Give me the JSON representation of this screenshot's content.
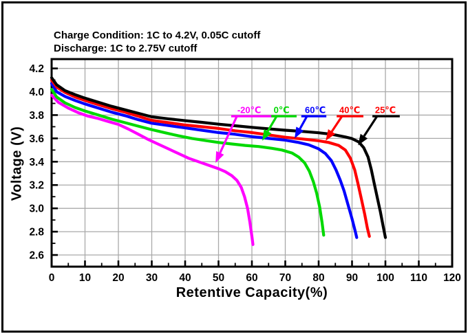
{
  "header": {
    "line1": "Charge Condition: 1C to 4.2V, 0.05C cutoff",
    "line2": "Discharge: 1C to 2.75V cutoff"
  },
  "chart_data": {
    "type": "line",
    "title": "",
    "xlabel": "Retentive Capacity(%)",
    "ylabel": "Voltage (V)",
    "xlim": [
      0,
      120
    ],
    "ylim": [
      2.5,
      4.28
    ],
    "x_major_ticks": [
      0,
      10,
      20,
      30,
      40,
      50,
      60,
      70,
      80,
      90,
      100,
      110,
      120
    ],
    "x_minor_ticks": [
      5,
      15,
      25,
      35,
      45,
      55,
      65,
      75,
      85,
      95,
      105,
      115
    ],
    "y_major_ticks": [
      2.6,
      2.8,
      3.0,
      3.2,
      3.4,
      3.6,
      3.8,
      4.0,
      4.2
    ],
    "y_minor_ticks": [
      2.7,
      2.9,
      3.1,
      3.3,
      3.5,
      3.7,
      3.9,
      4.1
    ],
    "grid": {
      "show": true,
      "color": "#a9a9a9",
      "x_step": 10,
      "y_step": 0.2
    },
    "legend_position": "inline-arrow-labels",
    "series": [
      {
        "name": "-20℃",
        "color": "#ff00ff",
        "points": [
          [
            0,
            3.97
          ],
          [
            2,
            3.91
          ],
          [
            5,
            3.86
          ],
          [
            8,
            3.82
          ],
          [
            11,
            3.79
          ],
          [
            14,
            3.77
          ],
          [
            17,
            3.745
          ],
          [
            20,
            3.72
          ],
          [
            23,
            3.68
          ],
          [
            26,
            3.635
          ],
          [
            29,
            3.59
          ],
          [
            32,
            3.55
          ],
          [
            35,
            3.51
          ],
          [
            38,
            3.47
          ],
          [
            41,
            3.43
          ],
          [
            44,
            3.4
          ],
          [
            47,
            3.37
          ],
          [
            50,
            3.34
          ],
          [
            52,
            3.315
          ],
          [
            54,
            3.28
          ],
          [
            55.5,
            3.24
          ],
          [
            56.8,
            3.18
          ],
          [
            57.8,
            3.1
          ],
          [
            58.7,
            3.0
          ],
          [
            59.4,
            2.88
          ],
          [
            60,
            2.76
          ],
          [
            60.3,
            2.69
          ]
        ]
      },
      {
        "name": "0℃",
        "color": "#00d900",
        "points": [
          [
            0,
            4.02
          ],
          [
            1.5,
            3.955
          ],
          [
            4,
            3.905
          ],
          [
            7,
            3.865
          ],
          [
            10,
            3.835
          ],
          [
            14,
            3.8
          ],
          [
            18,
            3.765
          ],
          [
            22,
            3.735
          ],
          [
            26,
            3.705
          ],
          [
            30,
            3.675
          ],
          [
            34,
            3.648
          ],
          [
            38,
            3.622
          ],
          [
            42,
            3.6
          ],
          [
            46,
            3.582
          ],
          [
            50,
            3.565
          ],
          [
            54,
            3.552
          ],
          [
            58,
            3.54
          ],
          [
            62,
            3.53
          ],
          [
            66,
            3.515
          ],
          [
            69,
            3.5
          ],
          [
            72,
            3.475
          ],
          [
            74,
            3.44
          ],
          [
            75.8,
            3.39
          ],
          [
            77.2,
            3.32
          ],
          [
            78.4,
            3.23
          ],
          [
            79.4,
            3.13
          ],
          [
            80.3,
            3.01
          ],
          [
            81,
            2.88
          ],
          [
            81.5,
            2.77
          ]
        ]
      },
      {
        "name": "60℃",
        "color": "#0000ff",
        "points": [
          [
            0,
            4.07
          ],
          [
            1.5,
            4.0
          ],
          [
            4,
            3.96
          ],
          [
            7,
            3.925
          ],
          [
            10,
            3.895
          ],
          [
            14,
            3.86
          ],
          [
            18,
            3.825
          ],
          [
            22,
            3.795
          ],
          [
            26,
            3.76
          ],
          [
            30,
            3.73
          ],
          [
            35,
            3.71
          ],
          [
            40,
            3.69
          ],
          [
            45,
            3.67
          ],
          [
            50,
            3.65
          ],
          [
            55,
            3.635
          ],
          [
            60,
            3.615
          ],
          [
            65,
            3.6
          ],
          [
            70,
            3.585
          ],
          [
            74,
            3.565
          ],
          [
            77,
            3.545
          ],
          [
            80,
            3.51
          ],
          [
            82,
            3.47
          ],
          [
            83.8,
            3.41
          ],
          [
            85.2,
            3.33
          ],
          [
            86.5,
            3.24
          ],
          [
            87.6,
            3.15
          ],
          [
            88.8,
            3.03
          ],
          [
            90,
            2.91
          ],
          [
            91,
            2.8
          ],
          [
            91.4,
            2.75
          ]
        ]
      },
      {
        "name": "40℃",
        "color": "#ff0000",
        "points": [
          [
            0,
            4.1
          ],
          [
            1.5,
            4.04
          ],
          [
            4,
            3.995
          ],
          [
            7,
            3.955
          ],
          [
            10,
            3.925
          ],
          [
            14,
            3.89
          ],
          [
            18,
            3.855
          ],
          [
            22,
            3.825
          ],
          [
            26,
            3.79
          ],
          [
            30,
            3.755
          ],
          [
            35,
            3.735
          ],
          [
            40,
            3.715
          ],
          [
            45,
            3.7
          ],
          [
            50,
            3.685
          ],
          [
            55,
            3.665
          ],
          [
            60,
            3.65
          ],
          [
            65,
            3.63
          ],
          [
            70,
            3.61
          ],
          [
            75,
            3.595
          ],
          [
            80,
            3.58
          ],
          [
            83,
            3.565
          ],
          [
            86,
            3.54
          ],
          [
            88,
            3.5
          ],
          [
            89.5,
            3.43
          ],
          [
            90.8,
            3.33
          ],
          [
            91.8,
            3.21
          ],
          [
            92.8,
            3.08
          ],
          [
            93.8,
            2.95
          ],
          [
            94.6,
            2.83
          ],
          [
            95.2,
            2.76
          ]
        ]
      },
      {
        "name": "25℃",
        "color": "#000000",
        "points": [
          [
            0,
            4.12
          ],
          [
            1.5,
            4.06
          ],
          [
            4,
            4.01
          ],
          [
            7,
            3.975
          ],
          [
            10,
            3.945
          ],
          [
            14,
            3.91
          ],
          [
            18,
            3.875
          ],
          [
            22,
            3.845
          ],
          [
            26,
            3.815
          ],
          [
            30,
            3.785
          ],
          [
            35,
            3.768
          ],
          [
            40,
            3.752
          ],
          [
            45,
            3.738
          ],
          [
            50,
            3.722
          ],
          [
            55,
            3.708
          ],
          [
            60,
            3.695
          ],
          [
            65,
            3.682
          ],
          [
            70,
            3.67
          ],
          [
            75,
            3.66
          ],
          [
            80,
            3.648
          ],
          [
            84,
            3.635
          ],
          [
            88,
            3.612
          ],
          [
            90,
            3.598
          ],
          [
            92,
            3.57
          ],
          [
            93.5,
            3.52
          ],
          [
            94.8,
            3.44
          ],
          [
            95.8,
            3.33
          ],
          [
            96.6,
            3.22
          ],
          [
            97.5,
            3.1
          ],
          [
            98.5,
            2.97
          ],
          [
            99.3,
            2.85
          ],
          [
            100,
            2.75
          ]
        ]
      }
    ],
    "annotations": [
      {
        "text": "-20℃",
        "text_color": "#ff00ff",
        "line_color": "#ff00ff",
        "text_x": 59.2,
        "underline": [
          53.8,
          66.6
        ],
        "line_y": 3.79,
        "arrow_from": [
          55.5,
          3.79
        ],
        "arrow_tip": [
          49.1,
          3.39
        ]
      },
      {
        "text": "0℃",
        "text_color": "#00d900",
        "line_color": "#00d900",
        "text_x": 68.9,
        "underline": [
          65.8,
          73.4
        ],
        "line_y": 3.79,
        "arrow_from": [
          67.4,
          3.79
        ],
        "arrow_tip": [
          63.1,
          3.58
        ]
      },
      {
        "text": "60℃",
        "text_color": "#0000ff",
        "line_color": "#0000ff",
        "text_x": 79.0,
        "underline": [
          74.8,
          82.3
        ],
        "line_y": 3.79,
        "arrow_from": [
          76.5,
          3.79
        ],
        "arrow_tip": [
          72.8,
          3.6
        ]
      },
      {
        "text": "40℃",
        "text_color": "#ff0000",
        "line_color": "#ff0000",
        "text_x": 89.3,
        "underline": [
          85.4,
          93.4
        ],
        "line_y": 3.79,
        "arrow_from": [
          87.0,
          3.79
        ],
        "arrow_tip": [
          82.1,
          3.58
        ]
      },
      {
        "text": "25℃",
        "text_color": "#ff0000",
        "line_color": "#000000",
        "text_x": 100.0,
        "underline": [
          96.1,
          104.3
        ],
        "line_y": 3.79,
        "arrow_from": [
          97.5,
          3.79
        ],
        "arrow_tip": [
          91.8,
          3.54
        ]
      }
    ],
    "frame_color": "#000000",
    "background": "#ffffff"
  }
}
